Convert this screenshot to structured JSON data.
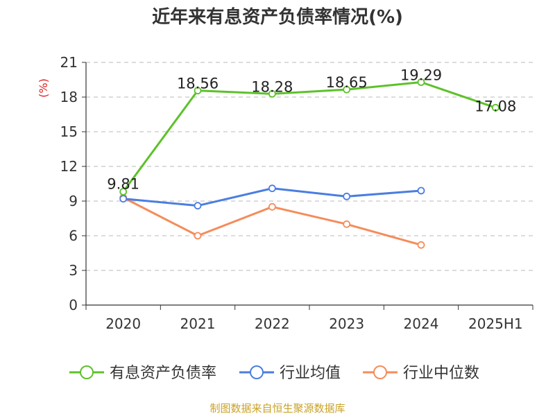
{
  "chart_data": {
    "type": "line",
    "title": "近年来有息资产负债率情况(%)",
    "ylabel": "(%)",
    "xlabel": "",
    "categories": [
      "2020",
      "2021",
      "2022",
      "2023",
      "2024",
      "2025H1"
    ],
    "ylim": [
      0,
      21
    ],
    "yticks": [
      0,
      3,
      6,
      9,
      12,
      15,
      18,
      21
    ],
    "grid": true,
    "legend_position": "bottom",
    "series": [
      {
        "name": "有息资产负债率",
        "color": "#5cc22a",
        "values": [
          9.81,
          18.56,
          18.28,
          18.65,
          19.29,
          17.08
        ],
        "labels": [
          "9.81",
          "18.56",
          "18.28",
          "18.65",
          "19.29",
          "17.08"
        ]
      },
      {
        "name": "行业均值",
        "color": "#4a7ee0",
        "values": [
          9.2,
          8.6,
          10.1,
          9.4,
          9.9,
          null
        ]
      },
      {
        "name": "行业中位数",
        "color": "#f58c5a",
        "values": [
          9.3,
          6.0,
          8.5,
          7.0,
          5.2,
          null
        ]
      }
    ]
  },
  "footer": {
    "source": "制图数据来自恒生聚源数据库",
    "source_color": "#c9a227"
  }
}
